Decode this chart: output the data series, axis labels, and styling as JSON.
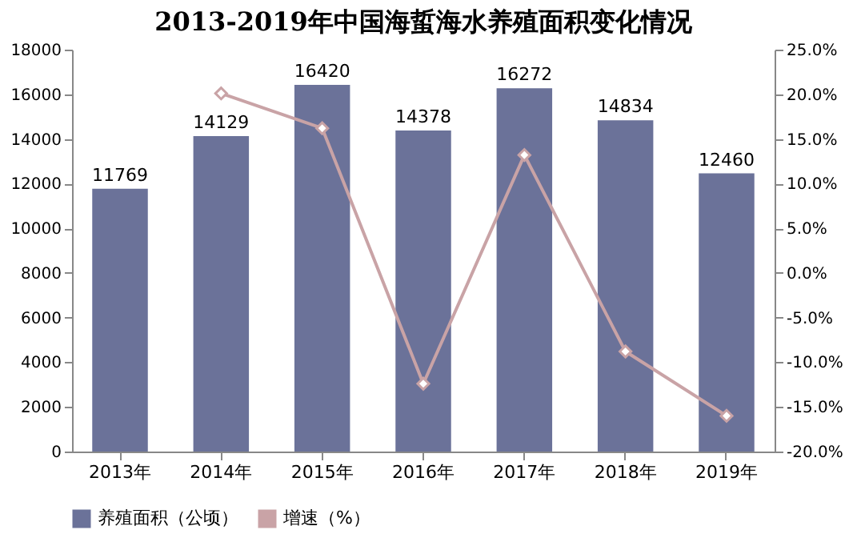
{
  "chart_data": {
    "type": "bar",
    "title": "2013-2019年中国海蜇海水养殖面积变化情况",
    "categories": [
      "2013年",
      "2014年",
      "2015年",
      "2016年",
      "2017年",
      "2018年",
      "2019年"
    ],
    "series": [
      {
        "name": "养殖面积（公顷）",
        "color": "#6b7299",
        "values": [
          11769,
          14129,
          16420,
          14378,
          16272,
          14834,
          12460
        ],
        "value_labels": [
          "11769",
          "14129",
          "16420",
          "14378",
          "16272",
          "14834",
          "12460"
        ]
      },
      {
        "name": "增速（%）",
        "type": "line",
        "axis": "y2",
        "color": "#c9a3a6",
        "marker": "diamond",
        "values": [
          null,
          20.1,
          16.2,
          -12.4,
          13.2,
          -8.8,
          -16.0
        ]
      }
    ],
    "ylim": [
      0,
      18000
    ],
    "yticks": [
      0,
      2000,
      4000,
      6000,
      8000,
      10000,
      12000,
      14000,
      16000,
      18000
    ],
    "y2lim": [
      -20,
      25
    ],
    "y2ticks": [
      {
        "value": -20,
        "label": "-20.0%"
      },
      {
        "value": -15,
        "label": "-15.0%"
      },
      {
        "value": -10,
        "label": "-10.0%"
      },
      {
        "value": -5,
        "label": "-5.0%"
      },
      {
        "value": 0,
        "label": "0.0%"
      },
      {
        "value": 5,
        "label": "5.0%"
      },
      {
        "value": 10,
        "label": "10.0%"
      },
      {
        "value": 15,
        "label": "15.0%"
      },
      {
        "value": 20,
        "label": "20.0%"
      },
      {
        "value": 25,
        "label": "25.0%"
      }
    ],
    "legend": "bottom",
    "grid": false
  }
}
